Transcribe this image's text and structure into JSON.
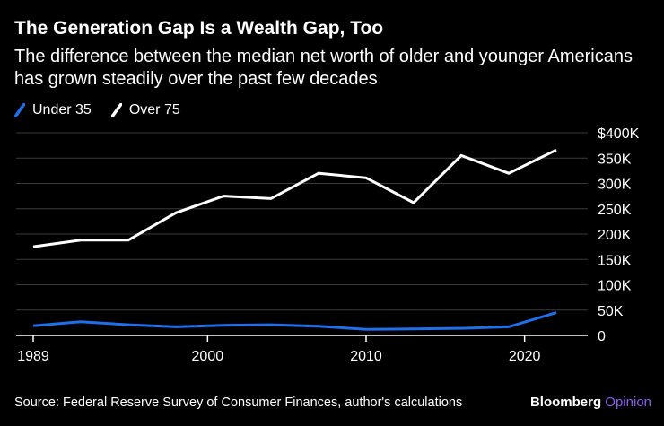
{
  "title": "The Generation Gap Is a Wealth Gap, Too",
  "subtitle": "The difference between the median net worth of older and younger Americans has grown steadily over the past few decades",
  "source": "Source: Federal Reserve Survey of Consumer Finances, author's calculations",
  "brand": {
    "primary": "Bloomberg",
    "secondary": "Opinion",
    "secondary_color": "#8b5cf6"
  },
  "chart_data": {
    "type": "line",
    "title": "The Generation Gap Is a Wealth Gap, Too",
    "subtitle": "The difference between the median net worth of older and younger Americans has grown steadily over the past few decades",
    "xlabel": "",
    "ylabel": "",
    "x": [
      1989,
      1992,
      1995,
      1998,
      2001,
      2004,
      2007,
      2010,
      2013,
      2016,
      2019,
      2022
    ],
    "xlim": [
      1989,
      2022
    ],
    "ylim": [
      0,
      400000
    ],
    "x_ticks": [
      1989,
      2000,
      2010,
      2020
    ],
    "x_tick_labels": [
      "1989",
      "2000",
      "2010",
      "2020"
    ],
    "y_ticks": [
      0,
      50000,
      100000,
      150000,
      200000,
      250000,
      300000,
      350000,
      400000
    ],
    "y_tick_labels": [
      "0",
      "50K",
      "100K",
      "150K",
      "200K",
      "250K",
      "300K",
      "350K",
      "$400K"
    ],
    "grid": true,
    "legend_position": "top-left",
    "series": [
      {
        "name": "Under 35",
        "color": "#1f6feb",
        "values": [
          19000,
          27000,
          21000,
          17000,
          20000,
          21000,
          18000,
          12000,
          13000,
          14000,
          17000,
          45000
        ]
      },
      {
        "name": "Over 75",
        "color": "#ffffff",
        "values": [
          175000,
          188000,
          188000,
          242000,
          275000,
          270000,
          320000,
          311000,
          262000,
          355000,
          320000,
          366000
        ]
      }
    ]
  }
}
